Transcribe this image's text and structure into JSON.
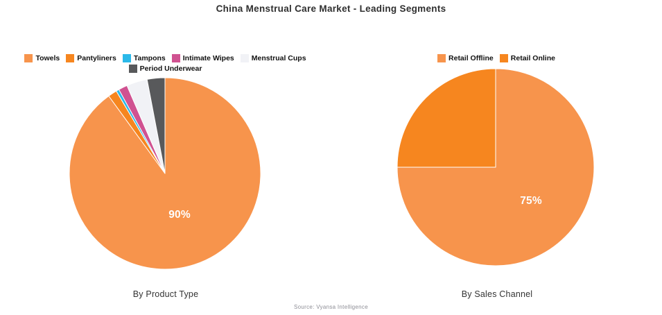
{
  "title": "China Menstrual Care Market - Leading Segments",
  "source": "Source: Vyansa Intelligence",
  "colors": {
    "light_orange": "#F7944C",
    "dark_orange": "#F6861F",
    "cyan": "#2BB9E9",
    "pink": "#D05291",
    "pale_gray": "#F1F2F6",
    "dark_gray": "#58595B",
    "slice_border": "#FFFFFF",
    "title_text": "#2F2F2F",
    "axis_text": "#333333",
    "source_text": "#8D8D95"
  },
  "chart_data": [
    {
      "type": "pie",
      "title": "By Product Type",
      "labels": [
        "Towels",
        "Pantyliners",
        "Tampons",
        "Intimate Wipes",
        "Menstrual Cups",
        "Period Underwear"
      ],
      "values": [
        90,
        1.5,
        0.5,
        1.5,
        3.5,
        3
      ],
      "colors": [
        "#F7944C",
        "#F6861F",
        "#2BB9E9",
        "#D05291",
        "#F1F2F6",
        "#58595B"
      ],
      "displayed_label": "90%",
      "displayed_label_slice": "Towels",
      "legend_rows": [
        [
          0,
          1,
          2,
          3,
          4
        ],
        [
          5
        ]
      ],
      "legend_position": "top",
      "start_angle": "top",
      "direction": "clockwise"
    },
    {
      "type": "pie",
      "title": "By Sales Channel",
      "labels": [
        "Retail Offline",
        "Retail Online"
      ],
      "values": [
        75,
        25
      ],
      "colors": [
        "#F7944C",
        "#F6861F"
      ],
      "displayed_label": "75%",
      "displayed_label_slice": "Retail Offline",
      "legend_rows": [
        [
          0,
          1
        ]
      ],
      "legend_position": "top",
      "start_angle": "top",
      "direction": "clockwise"
    }
  ]
}
